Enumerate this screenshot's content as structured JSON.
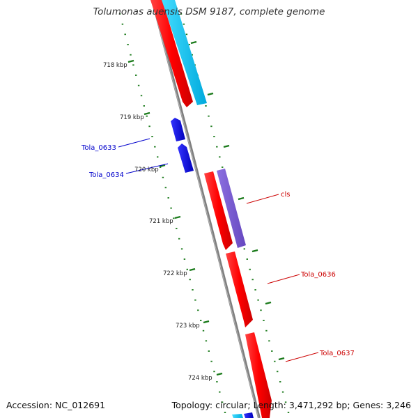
{
  "title": "Tolumonas auensis DSM 9187, complete genome",
  "footer": {
    "accession": "Accession: NC_012691",
    "summary": "Topology: circular; Length: 3,471,292 bp; Genes: 3,246"
  },
  "colors": {
    "backbone": "#808080",
    "tick": "#1a7a1a",
    "forward_gene": "#ff0000",
    "reverse_gene": "#0000ee",
    "cds_cyan": "#00ccff",
    "rna_purple": "#7a5cd6"
  },
  "ticks": [
    {
      "label": "718 kbp",
      "kbp": 718
    },
    {
      "label": "719 kbp",
      "kbp": 719
    },
    {
      "label": "720 kbp",
      "kbp": 720
    },
    {
      "label": "721 kbp",
      "kbp": 721
    },
    {
      "label": "722 kbp",
      "kbp": 722
    },
    {
      "label": "723 kbp",
      "kbp": 723
    },
    {
      "label": "724 kbp",
      "kbp": 724
    }
  ],
  "genes": [
    {
      "label": "Tola_0633",
      "color": "#0000cc"
    },
    {
      "label": "Tola_0634",
      "color": "#0000cc"
    },
    {
      "label": "cls",
      "color": "#cc0000"
    },
    {
      "label": "Tola_0636",
      "color": "#cc0000"
    },
    {
      "label": "Tola_0637",
      "color": "#cc0000"
    }
  ]
}
